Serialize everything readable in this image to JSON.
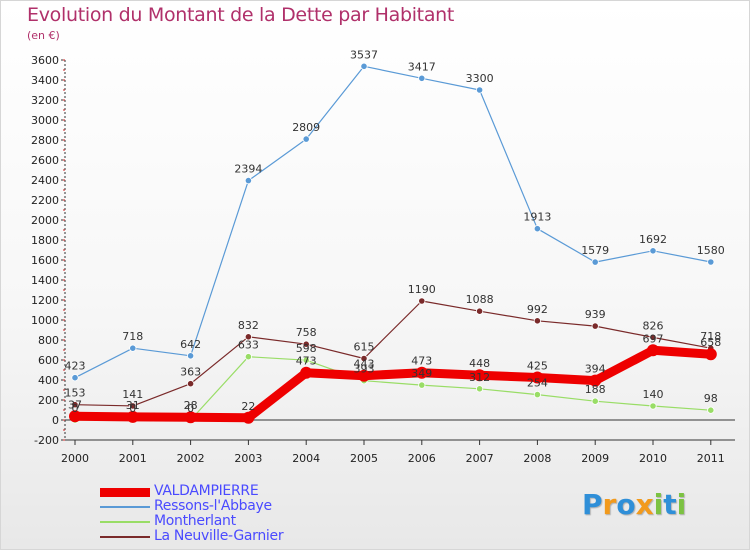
{
  "title": "Evolution du Montant de la Dette par Habitant",
  "subtitle": "(en €)",
  "logo": {
    "letters": [
      "P",
      "r",
      "o",
      "x",
      "i",
      "t",
      "i"
    ],
    "colors": [
      "#2f8fd8",
      "#f29a1c",
      "#2f8fd8",
      "#f29a1c",
      "#7cc242",
      "#2f8fd8",
      "#7cc242"
    ]
  },
  "chart_data": {
    "type": "line",
    "x": [
      "2000",
      "2001",
      "2002",
      "2003",
      "2004",
      "2005",
      "2006",
      "2007",
      "2008",
      "2009",
      "2010",
      "2011"
    ],
    "ylim": [
      -200,
      3600
    ],
    "yticks": [
      "-200",
      "0",
      "200",
      "400",
      "600",
      "800",
      "1000",
      "1200",
      "1400",
      "1600",
      "1800",
      "2000",
      "2200",
      "2400",
      "2600",
      "2800",
      "3000",
      "3200",
      "3400",
      "3600"
    ],
    "grid": false,
    "legend_position": "bottom-left",
    "series": [
      {
        "name": "VALDAMPIERRE",
        "color": "#ee0000",
        "values": [
          37,
          31,
          28,
          22,
          473,
          443,
          473,
          448,
          425,
          394,
          697,
          658
        ],
        "labels": [
          "37",
          "31",
          "28",
          "22",
          "473",
          "443",
          "473",
          "448",
          "425",
          "394",
          "697",
          "658"
        ]
      },
      {
        "name": "Ressons-l'Abbaye",
        "color": "#5a9ad6",
        "values": [
          423,
          718,
          642,
          2394,
          2809,
          3537,
          3417,
          3300,
          1913,
          1579,
          1692,
          1580
        ],
        "labels": [
          "423",
          "718",
          "642",
          "2394",
          "2809",
          "3537",
          "3417",
          "3300",
          "1913",
          "1579",
          "1692",
          "1580"
        ]
      },
      {
        "name": "Montherlant",
        "color": "#99dd66",
        "values": [
          0,
          0,
          0,
          633,
          598,
          393,
          349,
          312,
          254,
          188,
          140,
          98
        ],
        "labels": [
          "0",
          "0",
          "0",
          "633",
          "598",
          "393",
          "349",
          "312",
          "254",
          "188",
          "140",
          "98"
        ]
      },
      {
        "name": "La Neuville-Garnier",
        "color": "#7a2a2a",
        "values": [
          153,
          141,
          363,
          832,
          758,
          615,
          1190,
          1088,
          992,
          939,
          826,
          718
        ],
        "labels": [
          "153",
          "141",
          "363",
          "832",
          "758",
          "615",
          "1190",
          "1088",
          "992",
          "939",
          "826",
          "718"
        ]
      }
    ]
  }
}
